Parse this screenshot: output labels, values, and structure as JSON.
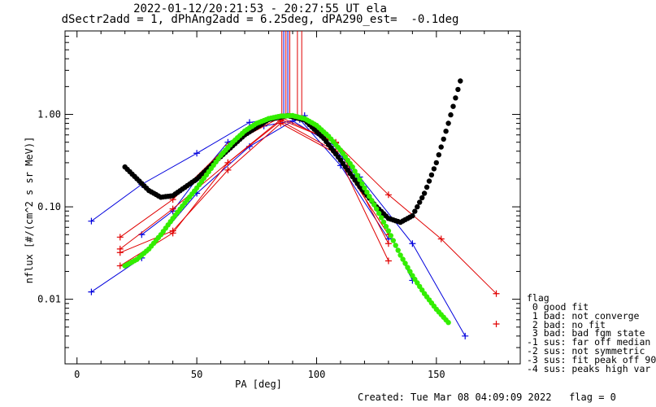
{
  "header": {
    "title_line1": "2022-01-12/20:21:53 - 20:27:55 UT ela",
    "title_line2": "dSectr2add = 1, dPhAng2add = 6.25deg, dPA290_est=  -0.1deg"
  },
  "footer": {
    "text": "Created: Tue Mar 08 04:09:09 2022   flag = 0"
  },
  "legend": {
    "title": "flag",
    "items": [
      " 0 good fit",
      " 1 bad: not converge",
      " 2 bad: no fit",
      " 3 bad: bad fgm state",
      "-1 sus: far off median",
      "-2 sus: not symmetric",
      "-3 sus: fit peak off 90",
      "-4 sus: peaks high var"
    ]
  },
  "colors": {
    "red": "#e00000",
    "blue": "#0000dd",
    "green": "#33ee00",
    "black": "#000000",
    "axis": "#000000"
  },
  "chart_data": {
    "type": "line",
    "xlabel": "PA [deg]",
    "ylabel": "nflux [#/(cm^2 s sr MeV)]",
    "xlim": [
      -5,
      185
    ],
    "ylim": [
      0.002,
      8
    ],
    "ylog": true,
    "xticks": [
      0,
      50,
      100,
      150
    ],
    "xtick_labels": [
      "0",
      "50",
      "100",
      "150"
    ],
    "yticks": [
      0.01,
      0.1,
      1.0
    ],
    "ytick_labels": [
      "0.01",
      "0.10",
      "1.00"
    ],
    "vertical_lines": [
      {
        "x": 85.5,
        "color": "#e00000"
      },
      {
        "x": 86.3,
        "color": "#0000dd"
      },
      {
        "x": 87.2,
        "color": "#e00000"
      },
      {
        "x": 88.0,
        "color": "#0000dd"
      },
      {
        "x": 88.8,
        "color": "#e00000"
      },
      {
        "x": 92.0,
        "color": "#e00000"
      },
      {
        "x": 93.8,
        "color": "#e00000"
      }
    ],
    "series": [
      {
        "color": "#0000dd",
        "x": [
          6,
          27,
          50,
          72,
          95,
          118,
          140,
          162
        ],
        "y": [
          0.07,
          0.175,
          0.38,
          0.82,
          0.97,
          0.21,
          0.04,
          0.004
        ]
      },
      {
        "color": "#0000dd",
        "x": [
          6,
          27,
          50,
          72,
          90,
          108,
          126,
          140
        ],
        "y": [
          0.012,
          0.028,
          0.14,
          0.45,
          0.85,
          0.45,
          0.09,
          0.016
        ]
      },
      {
        "color": "#0000dd",
        "x": [
          27,
          40,
          50,
          63,
          78,
          93,
          110,
          130
        ],
        "y": [
          0.05,
          0.09,
          0.2,
          0.5,
          0.75,
          0.88,
          0.28,
          0.045
        ]
      },
      {
        "color": "#e00000",
        "x": [
          18,
          40,
          63,
          85,
          108,
          130,
          152,
          175
        ],
        "y": [
          0.047,
          0.12,
          0.46,
          0.93,
          0.49,
          0.135,
          0.045,
          0.0115
        ]
      },
      {
        "color": "#e00000",
        "x": [
          18,
          40,
          63,
          85,
          108,
          130
        ],
        "y": [
          0.035,
          0.095,
          0.3,
          0.85,
          0.4,
          0.026
        ]
      },
      {
        "color": "#e00000",
        "x": [
          18,
          40,
          63,
          85,
          108,
          130
        ],
        "y": [
          0.032,
          0.055,
          0.25,
          0.8,
          0.38,
          0.05
        ]
      },
      {
        "color": "#e00000",
        "x": [
          18,
          40,
          63,
          85,
          108,
          130
        ],
        "y": [
          0.023,
          0.052,
          0.3,
          0.88,
          0.5,
          0.04
        ]
      },
      {
        "color": "#e00000",
        "x": [
          175
        ],
        "y": [
          0.0054
        ]
      }
    ],
    "fits": [
      {
        "color": "#000000",
        "x": [
          20,
          30,
          35,
          40,
          50,
          60,
          70,
          80,
          88,
          95,
          103,
          110,
          118,
          125,
          130,
          135,
          140,
          145,
          150,
          155,
          160
        ],
        "y": [
          0.27,
          0.15,
          0.127,
          0.132,
          0.2,
          0.35,
          0.6,
          0.88,
          0.97,
          0.87,
          0.55,
          0.32,
          0.165,
          0.1,
          0.075,
          0.068,
          0.08,
          0.14,
          0.3,
          0.8,
          2.3
        ]
      },
      {
        "color": "#33ee00",
        "x": [
          20,
          25,
          30,
          35,
          40,
          45,
          50,
          55,
          60,
          65,
          70,
          75,
          80,
          85,
          90,
          95,
          100,
          105,
          110,
          115,
          120,
          125,
          130,
          135,
          140,
          145,
          150,
          155
        ],
        "y": [
          0.023,
          0.027,
          0.035,
          0.05,
          0.075,
          0.11,
          0.16,
          0.24,
          0.36,
          0.5,
          0.66,
          0.8,
          0.9,
          0.96,
          0.97,
          0.9,
          0.76,
          0.58,
          0.41,
          0.27,
          0.16,
          0.095,
          0.055,
          0.03,
          0.018,
          0.0115,
          0.0078,
          0.0056
        ]
      }
    ]
  }
}
